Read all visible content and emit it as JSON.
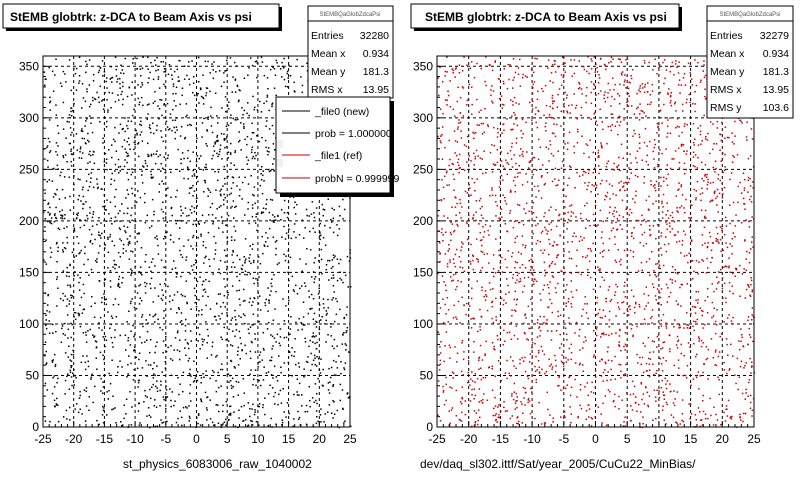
{
  "chart_data": [
    {
      "type": "scatter",
      "title": "StEMB globtrk: z-DCA to Beam Axis vs psi",
      "xlabel": "st_physics_6083006_raw_1040002",
      "ylabel": "",
      "xlim": [
        -25,
        25
      ],
      "ylim": [
        0,
        360
      ],
      "xticks": [
        -25,
        -20,
        -15,
        -10,
        -5,
        0,
        5,
        10,
        15,
        20,
        25
      ],
      "yticks": [
        0,
        50,
        100,
        150,
        200,
        250,
        300,
        350
      ],
      "grid": true,
      "marker_color": "#000000",
      "stats": {
        "name": "StEMBQaGlobZdcaPsi",
        "rows": [
          {
            "label": "Entries",
            "value": "32280"
          },
          {
            "label": "Mean x",
            "value": "0.934"
          },
          {
            "label": "Mean y",
            "value": "181.3"
          },
          {
            "label": "RMS x",
            "value": "13.95"
          }
        ]
      },
      "legend": {
        "placement": "top-right",
        "entries": [
          {
            "label": "_file0 (new)",
            "color": "#000000"
          },
          {
            "label": "prob = 1.000000",
            "color": "#000000"
          },
          {
            "label": "_file1 (ref)",
            "color": "#cc0000"
          },
          {
            "label": "probN = 0.999999",
            "color": "#cc0000"
          }
        ]
      }
    },
    {
      "type": "scatter",
      "title": "StEMB globtrk: z-DCA to Beam Axis vs psi",
      "xlabel": "dev/daq_sl302.ittf/Sat/year_2005/CuCu22_MinBias/",
      "ylabel": "",
      "xlim": [
        -25,
        25
      ],
      "ylim": [
        0,
        360
      ],
      "xticks": [
        -25,
        -20,
        -15,
        -10,
        -5,
        0,
        5,
        10,
        15,
        20,
        25
      ],
      "yticks": [
        0,
        50,
        100,
        150,
        200,
        250,
        300,
        350
      ],
      "grid": true,
      "marker_color": "#cc0000",
      "stats": {
        "name": "StEMBQaGlobZdcaPsi",
        "rows": [
          {
            "label": "Entries",
            "value": "32279"
          },
          {
            "label": "Mean x",
            "value": "0.934"
          },
          {
            "label": "Mean y",
            "value": "181.3"
          },
          {
            "label": "RMS x",
            "value": "13.95"
          },
          {
            "label": "RMS y",
            "value": "103.6"
          }
        ]
      }
    }
  ]
}
